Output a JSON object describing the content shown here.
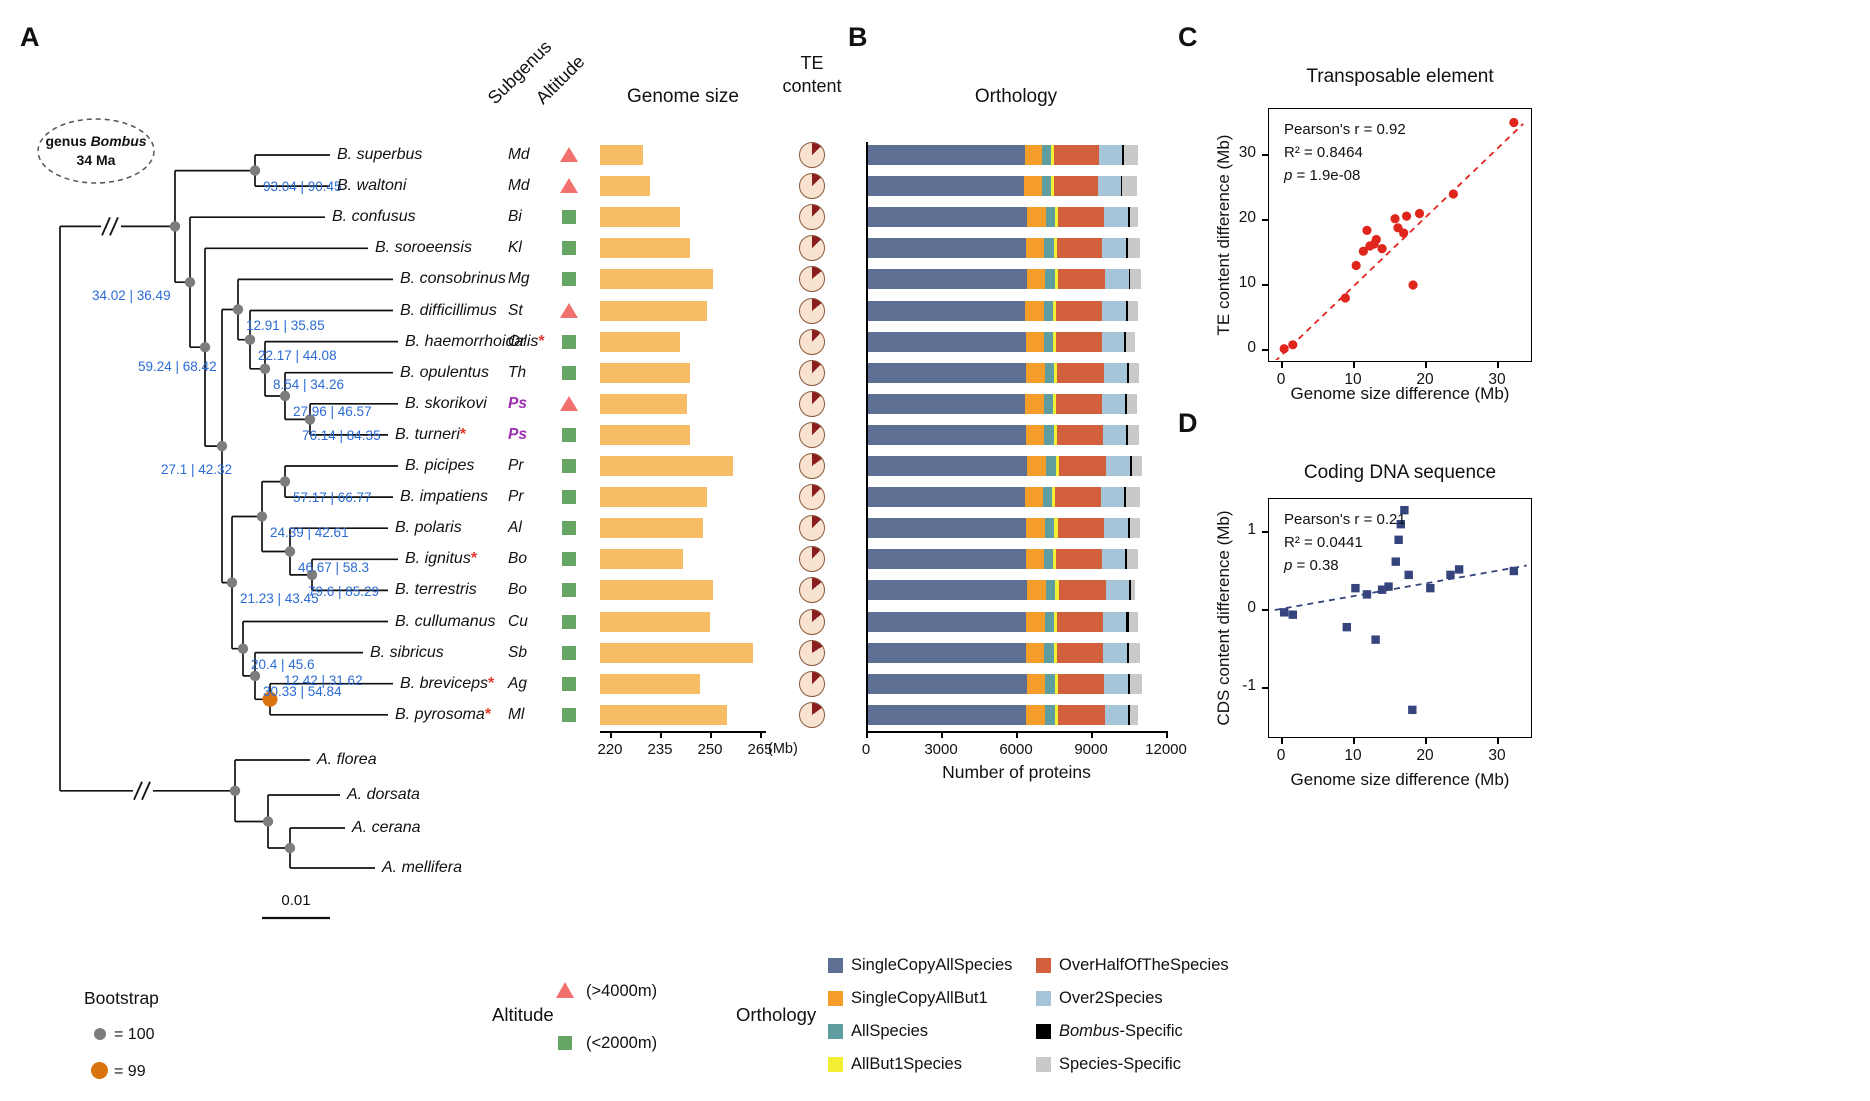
{
  "panel_labels": {
    "a": "A",
    "b": "B",
    "c": "C",
    "d": "D"
  },
  "headers": {
    "subgenus": "Subgenus",
    "altitude": "Altitude",
    "genome_size": "Genome size",
    "te_line1": "TE",
    "te_line2": "content",
    "orthology": "Orthology"
  },
  "tree": {
    "root_annotation": {
      "prefix": "genus ",
      "italic": "Bombus",
      "line2": "34 Ma"
    },
    "scale_bar_label": "0.01",
    "species": [
      {
        "name": "B. superbus",
        "asterisk": false,
        "subgenus": "Md",
        "ps": false,
        "altitude": "high"
      },
      {
        "name": "B. waltoni",
        "asterisk": false,
        "subgenus": "Md",
        "ps": false,
        "altitude": "high"
      },
      {
        "name": "B. confusus",
        "asterisk": false,
        "subgenus": "Bi",
        "ps": false,
        "altitude": "low"
      },
      {
        "name": "B. soroeensis",
        "asterisk": false,
        "subgenus": "Kl",
        "ps": false,
        "altitude": "low"
      },
      {
        "name": "B. consobrinus",
        "asterisk": false,
        "subgenus": "Mg",
        "ps": false,
        "altitude": "low"
      },
      {
        "name": "B. difficillimus",
        "asterisk": false,
        "subgenus": "St",
        "ps": false,
        "altitude": "high"
      },
      {
        "name": "B. haemorrhoidalis",
        "asterisk": true,
        "subgenus": "Or",
        "ps": false,
        "altitude": "low"
      },
      {
        "name": "B. opulentus",
        "asterisk": false,
        "subgenus": "Th",
        "ps": false,
        "altitude": "low"
      },
      {
        "name": "B. skorikovi",
        "asterisk": false,
        "subgenus": "Ps",
        "ps": true,
        "altitude": "high"
      },
      {
        "name": "B. turneri",
        "asterisk": true,
        "subgenus": "Ps",
        "ps": true,
        "altitude": "low"
      },
      {
        "name": "B. picipes",
        "asterisk": false,
        "subgenus": "Pr",
        "ps": false,
        "altitude": "low"
      },
      {
        "name": "B. impatiens",
        "asterisk": false,
        "subgenus": "Pr",
        "ps": false,
        "altitude": "low"
      },
      {
        "name": "B. polaris",
        "asterisk": false,
        "subgenus": "Al",
        "ps": false,
        "altitude": "low"
      },
      {
        "name": "B. ignitus",
        "asterisk": true,
        "subgenus": "Bo",
        "ps": false,
        "altitude": "low"
      },
      {
        "name": "B. terrestris",
        "asterisk": false,
        "subgenus": "Bo",
        "ps": false,
        "altitude": "low"
      },
      {
        "name": "B. cullumanus",
        "asterisk": false,
        "subgenus": "Cu",
        "ps": false,
        "altitude": "low"
      },
      {
        "name": "B. sibricus",
        "asterisk": false,
        "subgenus": "Sb",
        "ps": false,
        "altitude": "low"
      },
      {
        "name": "B. breviceps",
        "asterisk": true,
        "subgenus": "Ag",
        "ps": false,
        "altitude": "low"
      },
      {
        "name": "B. pyrosoma",
        "asterisk": true,
        "subgenus": "Ml",
        "ps": false,
        "altitude": "low"
      }
    ],
    "outgroup": [
      "A. florea",
      "A. dorsata",
      "A. cerana",
      "A. mellifera"
    ],
    "node_supports": {
      "N1": "93.04 | 90.45",
      "B0": "34.02 | 36.49",
      "C1": "59.24 | 68.42",
      "D": "27.1 | 42.32",
      "U1": "12.91 | 35.85",
      "U2": "22.17 | 44.08",
      "U3": "8.54 | 34.26",
      "U4": "27.96 | 46.57",
      "U5": "76.14 | 84.35",
      "Lpi": "57.17 | 66.77",
      "La": "24.39 | 42.61",
      "Lpo": "46.67 | 58.3",
      "Lbo": "79.6 | 85.29",
      "Lb": "21.23 | 43.45",
      "Lcu": "20.4 | 45.6",
      "Lsi": "30.33 | 54.84",
      "Lpy": "12.42 | 31.62"
    }
  },
  "colors": {
    "altitude_high": "#f0716d",
    "altitude_low": "#66a564",
    "genome_bar": "#f7bd66",
    "pie_wedge": "#8a1e1e",
    "pie_base": "#f8e3d1",
    "node_dot_gray": "#7d7d7d",
    "node_dot_orange": "#d9730d",
    "support_text": "#2a6bd4"
  },
  "chart_data": [
    {
      "type": "bar",
      "id": "genome_size",
      "title": "Genome size",
      "categories": [
        "B. superbus",
        "B. waltoni",
        "B. confusus",
        "B. soroeensis",
        "B. consobrinus",
        "B. difficillimus",
        "B. haemorrhoidalis",
        "B. opulentus",
        "B. skorikovi",
        "B. turneri",
        "B. picipes",
        "B. impatiens",
        "B. polaris",
        "B. ignitus",
        "B. terrestris",
        "B. cullumanus",
        "B. sibricus",
        "B. breviceps",
        "B. pyrosoma"
      ],
      "values": [
        230,
        232,
        241,
        244,
        251,
        249,
        241,
        244,
        243,
        244,
        257,
        249,
        248,
        242,
        251,
        250,
        263,
        247,
        255
      ],
      "xlabel": "(Mb)",
      "ticks": [
        220,
        235,
        250,
        265
      ],
      "xlim": [
        217,
        267
      ]
    },
    {
      "type": "pie",
      "id": "te_content",
      "title": "TE content",
      "values": [
        0.13,
        0.13,
        0.12,
        0.13,
        0.14,
        0.14,
        0.12,
        0.13,
        0.13,
        0.13,
        0.15,
        0.13,
        0.13,
        0.12,
        0.14,
        0.14,
        0.16,
        0.13,
        0.15
      ]
    },
    {
      "type": "bar",
      "id": "orthology",
      "title": "Orthology",
      "stacked": true,
      "segments": [
        "SingleCopyAllSpecies",
        "SingleCopyAllBut1",
        "AllSpecies",
        "AllBut1Species",
        "OverHalfOfTheSpecies",
        "Over2Species",
        "Bombus-Specific",
        "Species-Specific"
      ],
      "colors": [
        "#5d6f92",
        "#f49d2a",
        "#5f9ea0",
        "#f3ef35",
        "#d2603c",
        "#a6c5d8",
        "#000000",
        "#c9c9c9"
      ],
      "rows": [
        [
          6350,
          700,
          360,
          120,
          1800,
          920,
          60,
          560
        ],
        [
          6300,
          720,
          370,
          110,
          1780,
          900,
          70,
          580
        ],
        [
          6420,
          760,
          370,
          130,
          1850,
          960,
          80,
          300
        ],
        [
          6380,
          740,
          380,
          120,
          1830,
          940,
          90,
          470
        ],
        [
          6420,
          750,
          380,
          120,
          1880,
          950,
          70,
          430
        ],
        [
          6350,
          770,
          360,
          130,
          1840,
          930,
          100,
          390
        ],
        [
          6380,
          730,
          370,
          120,
          1820,
          910,
          80,
          360
        ],
        [
          6400,
          740,
          380,
          130,
          1850,
          950,
          70,
          410
        ],
        [
          6360,
          750,
          370,
          120,
          1830,
          940,
          80,
          370
        ],
        [
          6390,
          730,
          380,
          120,
          1840,
          930,
          70,
          440
        ],
        [
          6430,
          760,
          390,
          130,
          1880,
          970,
          80,
          410
        ],
        [
          6340,
          740,
          370,
          120,
          1810,
          940,
          90,
          540
        ],
        [
          6400,
          750,
          380,
          130,
          1850,
          960,
          80,
          390
        ],
        [
          6380,
          730,
          370,
          120,
          1820,
          930,
          70,
          460
        ],
        [
          6430,
          760,
          380,
          130,
          1880,
          950,
          60,
          160
        ],
        [
          6400,
          740,
          370,
          120,
          1830,
          940,
          100,
          360
        ],
        [
          6380,
          750,
          380,
          130,
          1850,
          960,
          80,
          430
        ],
        [
          6420,
          740,
          390,
          120,
          1860,
          950,
          70,
          490
        ],
        [
          6400,
          760,
          380,
          130,
          1870,
          940,
          90,
          310
        ]
      ],
      "xlabel": "Number of proteins",
      "ticks": [
        0,
        3000,
        6000,
        9000,
        12000
      ]
    },
    {
      "type": "scatter",
      "id": "transposable_element",
      "title": "Transposable element",
      "stats": {
        "r": "Pearson's r = 0.92",
        "r2": "R² = 0.8464",
        "p_label": "p",
        "p_value": " = 1.9e-08"
      },
      "xlabel": "Genome size difference (Mb)",
      "ylabel": "TE content difference (Mb)",
      "xticks": [
        0,
        10,
        20,
        30
      ],
      "yticks": [
        0,
        10,
        20,
        30
      ],
      "points": [
        [
          0.3,
          0.2
        ],
        [
          1.5,
          0.8
        ],
        [
          8.8,
          8.0
        ],
        [
          10.3,
          13.0
        ],
        [
          11.3,
          15.2
        ],
        [
          11.8,
          18.4
        ],
        [
          12.2,
          16.0
        ],
        [
          12.8,
          16.3
        ],
        [
          13.1,
          17.0
        ],
        [
          13.9,
          15.6
        ],
        [
          15.7,
          20.2
        ],
        [
          16.1,
          18.8
        ],
        [
          16.9,
          18.0
        ],
        [
          17.3,
          20.6
        ],
        [
          18.2,
          10.0
        ],
        [
          19.1,
          21.0
        ],
        [
          23.8,
          24.0
        ],
        [
          32.2,
          35.0
        ]
      ],
      "trend": [
        [
          -1.0,
          -1.8
        ],
        [
          33.5,
          34.8
        ]
      ],
      "color": "#e0251c",
      "marker": "circle"
    },
    {
      "type": "scatter",
      "id": "coding_dna",
      "title": "Coding DNA sequence",
      "stats": {
        "r": "Pearson's r = 0.21",
        "r2": "R² = 0.0441",
        "p_label": "p",
        "p_value": " = 0.38"
      },
      "xlabel": "Genome size difference (Mb)",
      "ylabel": "CDS content difference (Mb)",
      "xticks": [
        0,
        10,
        20,
        30
      ],
      "yticks": [
        -1,
        0,
        1
      ],
      "points": [
        [
          0.3,
          -0.03
        ],
        [
          1.5,
          -0.06
        ],
        [
          9.0,
          -0.22
        ],
        [
          10.2,
          0.28
        ],
        [
          11.8,
          0.2
        ],
        [
          13.0,
          -0.38
        ],
        [
          13.9,
          0.26
        ],
        [
          14.8,
          0.3
        ],
        [
          15.8,
          0.62
        ],
        [
          16.2,
          0.9
        ],
        [
          16.5,
          1.1
        ],
        [
          17.0,
          1.28
        ],
        [
          17.6,
          0.45
        ],
        [
          18.1,
          -1.28
        ],
        [
          20.6,
          0.28
        ],
        [
          23.4,
          0.45
        ],
        [
          24.6,
          0.52
        ],
        [
          32.2,
          0.5
        ]
      ],
      "trend": [
        [
          -1.0,
          0.0
        ],
        [
          34.0,
          0.57
        ]
      ],
      "color": "#36447e",
      "marker": "square"
    }
  ],
  "legends": {
    "bootstrap": {
      "title": "Bootstrap",
      "items": [
        {
          "symbol": "gray-dot",
          "label": "= 100"
        },
        {
          "symbol": "orange-dot",
          "label": "= 99"
        }
      ]
    },
    "altitude": {
      "title": "Altitude",
      "items": [
        {
          "symbol": "triangle",
          "label": "(>4000m)"
        },
        {
          "symbol": "square",
          "label": "(<2000m)"
        }
      ]
    },
    "orthology": {
      "title": "Orthology",
      "col1": [
        {
          "label": "SingleCopyAllSpecies"
        },
        {
          "label": "SingleCopyAllBut1"
        },
        {
          "label": "AllSpecies"
        },
        {
          "label": "AllBut1Species"
        }
      ],
      "col2": [
        {
          "label": "OverHalfOfTheSpecies"
        },
        {
          "label": "Over2Species"
        },
        {
          "label_italic": "Bombus",
          "label": "-Specific"
        },
        {
          "label": "Species-Specific"
        }
      ]
    }
  }
}
